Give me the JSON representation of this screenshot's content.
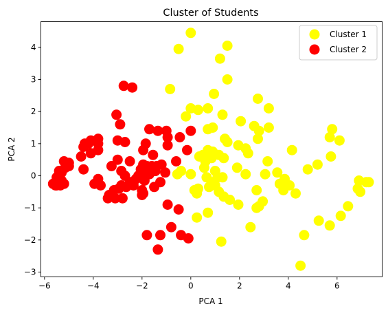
{
  "chart_data": {
    "type": "scatter",
    "title": "Cluster of Students",
    "xlabel": "PCA 1",
    "ylabel": "PCA 2",
    "xlim": [
      -6.15,
      7.85
    ],
    "ylim": [
      -3.15,
      4.8
    ],
    "xticks": [
      -6,
      -4,
      -2,
      0,
      2,
      4,
      6
    ],
    "yticks": [
      -3,
      -2,
      -1,
      0,
      1,
      2,
      3,
      4
    ],
    "grid": false,
    "legend_position": "upper right",
    "series": [
      {
        "name": "Cluster 1",
        "color": "#ffff00",
        "points": [
          [
            0.0,
            4.45
          ],
          [
            1.5,
            4.05
          ],
          [
            -0.5,
            3.95
          ],
          [
            1.2,
            3.65
          ],
          [
            -0.85,
            2.7
          ],
          [
            1.5,
            3.0
          ],
          [
            0.95,
            2.55
          ],
          [
            2.75,
            2.4
          ],
          [
            0.3,
            2.05
          ],
          [
            0.0,
            2.1
          ],
          [
            -0.2,
            1.85
          ],
          [
            0.7,
            2.1
          ],
          [
            3.2,
            2.1
          ],
          [
            1.3,
            1.9
          ],
          [
            2.05,
            1.7
          ],
          [
            2.6,
            1.55
          ],
          [
            2.8,
            1.4
          ],
          [
            3.2,
            1.5
          ],
          [
            0.7,
            1.45
          ],
          [
            0.9,
            1.5
          ],
          [
            5.8,
            1.45
          ],
          [
            5.7,
            1.2
          ],
          [
            6.1,
            1.1
          ],
          [
            2.75,
            1.15
          ],
          [
            1.4,
            1.15
          ],
          [
            1.5,
            1.05
          ],
          [
            1.95,
            0.95
          ],
          [
            2.25,
            0.85
          ],
          [
            4.15,
            0.8
          ],
          [
            0.9,
            0.75
          ],
          [
            0.7,
            0.8
          ],
          [
            0.5,
            0.65
          ],
          [
            1.15,
            0.65
          ],
          [
            1.35,
            0.55
          ],
          [
            0.85,
            0.55
          ],
          [
            5.75,
            0.6
          ],
          [
            0.35,
            0.6
          ],
          [
            2.35,
            0.7
          ],
          [
            3.15,
            0.45
          ],
          [
            0.6,
            0.45
          ],
          [
            5.2,
            0.35
          ],
          [
            4.8,
            0.2
          ],
          [
            1.9,
            0.25
          ],
          [
            0.55,
            0.25
          ],
          [
            1.0,
            0.15
          ],
          [
            3.55,
            0.1
          ],
          [
            3.05,
            0.05
          ],
          [
            2.25,
            0.05
          ],
          [
            -0.4,
            0.15
          ],
          [
            -0.55,
            0.05
          ],
          [
            0.0,
            0.05
          ],
          [
            0.65,
            -0.05
          ],
          [
            1.1,
            -0.05
          ],
          [
            1.3,
            -0.05
          ],
          [
            3.85,
            -0.1
          ],
          [
            6.9,
            -0.15
          ],
          [
            7.2,
            -0.2
          ],
          [
            7.3,
            -0.2
          ],
          [
            0.9,
            -0.2
          ],
          [
            1.0,
            -0.3
          ],
          [
            3.65,
            -0.25
          ],
          [
            4.05,
            -0.3
          ],
          [
            0.3,
            -0.4
          ],
          [
            0.75,
            -0.35
          ],
          [
            6.85,
            -0.4
          ],
          [
            3.8,
            -0.45
          ],
          [
            6.95,
            -0.5
          ],
          [
            1.15,
            -0.5
          ],
          [
            0.25,
            -0.55
          ],
          [
            4.3,
            -0.55
          ],
          [
            0.15,
            -0.45
          ],
          [
            2.7,
            -0.45
          ],
          [
            1.35,
            -0.65
          ],
          [
            1.6,
            -0.75
          ],
          [
            1.95,
            -0.9
          ],
          [
            2.95,
            -0.8
          ],
          [
            2.8,
            -0.95
          ],
          [
            2.7,
            -1.0
          ],
          [
            6.45,
            -0.95
          ],
          [
            0.7,
            -1.15
          ],
          [
            0.25,
            -1.3
          ],
          [
            6.15,
            -1.25
          ],
          [
            5.25,
            -1.4
          ],
          [
            5.7,
            -1.55
          ],
          [
            2.45,
            -1.6
          ],
          [
            4.65,
            -1.85
          ],
          [
            1.25,
            -2.05
          ],
          [
            4.5,
            -2.8
          ]
        ]
      },
      {
        "name": "Cluster 2",
        "color": "#ff0000",
        "points": [
          [
            -2.75,
            2.8
          ],
          [
            -2.4,
            2.75
          ],
          [
            -3.05,
            1.9
          ],
          [
            -2.9,
            1.6
          ],
          [
            -1.7,
            1.45
          ],
          [
            -1.35,
            1.4
          ],
          [
            -1.0,
            1.4
          ],
          [
            0.0,
            1.4
          ],
          [
            -3.8,
            1.15
          ],
          [
            -4.1,
            1.1
          ],
          [
            -4.2,
            1.0
          ],
          [
            -3.0,
            1.1
          ],
          [
            -0.95,
            1.2
          ],
          [
            -0.45,
            1.2
          ],
          [
            -4.35,
            1.0
          ],
          [
            -3.8,
            1.0
          ],
          [
            -2.7,
            1.05
          ],
          [
            -1.85,
            1.0
          ],
          [
            -0.95,
            0.95
          ],
          [
            -4.4,
            0.9
          ],
          [
            -3.8,
            0.8
          ],
          [
            -1.95,
            0.8
          ],
          [
            -0.15,
            0.8
          ],
          [
            -4.1,
            0.7
          ],
          [
            -1.55,
            0.65
          ],
          [
            -4.5,
            0.6
          ],
          [
            -5.2,
            0.45
          ],
          [
            -2.5,
            0.45
          ],
          [
            -0.6,
            0.45
          ],
          [
            -3.0,
            0.5
          ],
          [
            -5.0,
            0.4
          ],
          [
            -1.8,
            0.3
          ],
          [
            -5.15,
            0.25
          ],
          [
            -5.0,
            0.3
          ],
          [
            -1.95,
            0.35
          ],
          [
            -1.6,
            0.3
          ],
          [
            -1.2,
            0.35
          ],
          [
            -1.4,
            0.3
          ],
          [
            -3.25,
            0.3
          ],
          [
            -5.4,
            0.15
          ],
          [
            -5.3,
            0.1
          ],
          [
            -4.4,
            0.2
          ],
          [
            -2.85,
            0.15
          ],
          [
            -2.05,
            0.2
          ],
          [
            -1.75,
            0.15
          ],
          [
            -1.45,
            0.15
          ],
          [
            -1.7,
            0.05
          ],
          [
            -1.05,
            0.1
          ],
          [
            -5.5,
            -0.05
          ],
          [
            -2.7,
            0.0
          ],
          [
            -2.15,
            0.0
          ],
          [
            -1.9,
            -0.05
          ],
          [
            -3.8,
            -0.1
          ],
          [
            -5.45,
            -0.1
          ],
          [
            -5.3,
            -0.15
          ],
          [
            -2.25,
            -0.1
          ],
          [
            -1.9,
            -0.15
          ],
          [
            -2.5,
            -0.2
          ],
          [
            -1.25,
            -0.2
          ],
          [
            -5.55,
            -0.2
          ],
          [
            -5.35,
            -0.3
          ],
          [
            -5.55,
            -0.3
          ],
          [
            -3.95,
            -0.25
          ],
          [
            -3.7,
            -0.3
          ],
          [
            -2.85,
            -0.3
          ],
          [
            -2.65,
            -0.35
          ],
          [
            -2.35,
            -0.3
          ],
          [
            -1.5,
            -0.35
          ],
          [
            -5.65,
            -0.25
          ],
          [
            -5.5,
            -0.3
          ],
          [
            -5.2,
            -0.25
          ],
          [
            -3.15,
            -0.45
          ],
          [
            -2.95,
            -0.4
          ],
          [
            -2.0,
            -0.45
          ],
          [
            -3.35,
            -0.6
          ],
          [
            -2.0,
            -0.6
          ],
          [
            -2.8,
            -0.7
          ],
          [
            -3.1,
            -0.7
          ],
          [
            -3.4,
            -0.7
          ],
          [
            -1.95,
            -0.55
          ],
          [
            -0.95,
            -0.9
          ],
          [
            -0.5,
            -1.05
          ],
          [
            -0.8,
            -1.6
          ],
          [
            -1.8,
            -1.85
          ],
          [
            -1.25,
            -1.85
          ],
          [
            -0.4,
            -1.85
          ],
          [
            -0.1,
            -1.95
          ],
          [
            -1.35,
            -2.3
          ]
        ]
      }
    ]
  }
}
